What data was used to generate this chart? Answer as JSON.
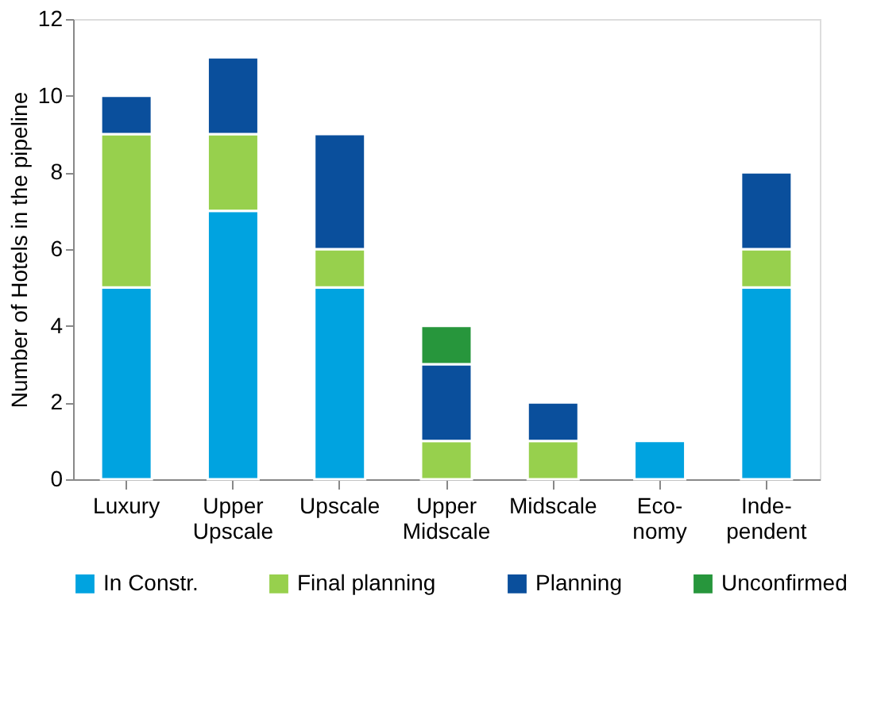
{
  "chart_data": {
    "type": "bar",
    "stacked": true,
    "ylabel": "Number of Hotels in the pipeline",
    "categories": [
      "Luxury",
      "Upper\nUpscale",
      "Upscale",
      "Upper\nMidscale",
      "Midscale",
      "Eco-\nnomy",
      "Inde-\npendent"
    ],
    "series": [
      {
        "name": "In Constr.",
        "color": "#00a3e0",
        "values": [
          5,
          7,
          5,
          null,
          null,
          1,
          5
        ]
      },
      {
        "name": "Final planning",
        "color": "#97d04d",
        "values": [
          4,
          2,
          1,
          1,
          1,
          null,
          1
        ]
      },
      {
        "name": "Planning",
        "color": "#0a4f9c",
        "values": [
          1,
          2,
          3,
          2,
          1,
          null,
          2
        ]
      },
      {
        "name": "Unconfirmed",
        "color": "#27963c",
        "values": [
          null,
          null,
          null,
          1,
          null,
          null,
          null
        ]
      }
    ],
    "ylim": [
      0,
      12
    ],
    "yticks": [
      0,
      2,
      4,
      6,
      8,
      10,
      12
    ],
    "grid": false,
    "legend": "bottom"
  }
}
